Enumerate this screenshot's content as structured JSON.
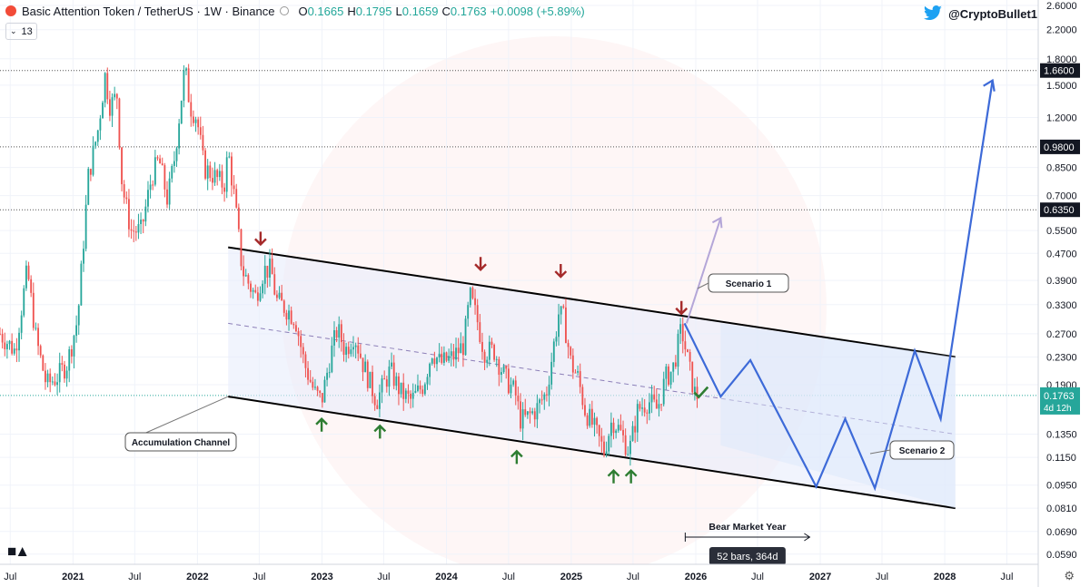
{
  "header": {
    "symbol": "Basic Attention Token / TetherUS · 1W · Binance",
    "o_label": "O",
    "o_value": "0.1665",
    "h_label": "H",
    "h_value": "0.1795",
    "l_label": "L",
    "l_value": "0.1659",
    "c_label": "C",
    "c_value": "0.1763",
    "change": "+0.0098 (+5.89%)"
  },
  "indicator_badge": "13",
  "twitter_handle": "@CryptoBullet1",
  "colors": {
    "up": "#26a69a",
    "down": "#ef5350",
    "channel": "#000000",
    "projection": "#3d6ad8",
    "scenario1": "#b4a6d8",
    "arrow_down": "#a52a2a",
    "arrow_up": "#2e7d32",
    "price_label": "#26a69a"
  },
  "chart_data": {
    "type": "line",
    "title": "",
    "xlabel": "",
    "ylabel": "",
    "y_scale": "log",
    "ylim": [
      0.055,
      2.7
    ],
    "xlim": [
      "2020-06-01",
      "2028-10-01"
    ],
    "x_ticks": [
      {
        "date": "2020-07-01",
        "label": "Jul"
      },
      {
        "date": "2021-01-01",
        "label": "2021"
      },
      {
        "date": "2021-07-01",
        "label": "Jul"
      },
      {
        "date": "2022-01-01",
        "label": "2022"
      },
      {
        "date": "2022-07-01",
        "label": "Jul"
      },
      {
        "date": "2023-01-01",
        "label": "2023"
      },
      {
        "date": "2023-07-01",
        "label": "Jul"
      },
      {
        "date": "2024-01-01",
        "label": "2024"
      },
      {
        "date": "2024-07-01",
        "label": "Jul"
      },
      {
        "date": "2025-01-01",
        "label": "2025"
      },
      {
        "date": "2025-07-01",
        "label": "Jul"
      },
      {
        "date": "2026-01-01",
        "label": "2026"
      },
      {
        "date": "2026-07-01",
        "label": "Jul"
      },
      {
        "date": "2027-01-01",
        "label": "2027"
      },
      {
        "date": "2027-07-01",
        "label": "Jul"
      },
      {
        "date": "2028-01-01",
        "label": "2028"
      },
      {
        "date": "2028-07-01",
        "label": "Jul"
      }
    ],
    "y_ticks": [
      "2.6000",
      "2.2000",
      "1.8000",
      "1.5000",
      "1.2000",
      "0.8500",
      "0.7000",
      "0.5500",
      "0.4700",
      "0.3900",
      "0.3300",
      "0.2700",
      "0.2300",
      "0.1900",
      "0.1350",
      "0.1150",
      "0.0950",
      "0.0810",
      "0.0690",
      "0.0590"
    ],
    "highlighted_levels": [
      {
        "value": 1.66,
        "label": "1.6600"
      },
      {
        "value": 0.98,
        "label": "0.9800"
      },
      {
        "value": 0.635,
        "label": "0.6350"
      }
    ],
    "current_price": {
      "value": 0.1763,
      "label": "0.1763",
      "countdown": "4d 12h"
    },
    "series": [
      {
        "name": "BAT/USDT",
        "points": [
          [
            "2020-06-01",
            0.27
          ],
          [
            "2020-07-15",
            0.24
          ],
          [
            "2020-08-20",
            0.42
          ],
          [
            "2020-09-15",
            0.26
          ],
          [
            "2020-10-15",
            0.19
          ],
          [
            "2020-11-15",
            0.2
          ],
          [
            "2020-12-15",
            0.22
          ],
          [
            "2021-01-15",
            0.3
          ],
          [
            "2021-02-15",
            0.8
          ],
          [
            "2021-03-15",
            1.1
          ],
          [
            "2021-04-05",
            1.6
          ],
          [
            "2021-04-20",
            1.3
          ],
          [
            "2021-05-10",
            1.4
          ],
          [
            "2021-05-25",
            0.75
          ],
          [
            "2021-06-20",
            0.55
          ],
          [
            "2021-07-20",
            0.55
          ],
          [
            "2021-08-20",
            0.8
          ],
          [
            "2021-09-10",
            0.9
          ],
          [
            "2021-10-05",
            0.68
          ],
          [
            "2021-10-25",
            0.9
          ],
          [
            "2021-11-25",
            1.7
          ],
          [
            "2021-12-10",
            1.3
          ],
          [
            "2021-12-30",
            1.2
          ],
          [
            "2022-01-20",
            0.85
          ],
          [
            "2022-02-20",
            0.8
          ],
          [
            "2022-03-20",
            0.75
          ],
          [
            "2022-04-01",
            0.95
          ],
          [
            "2022-04-20",
            0.68
          ],
          [
            "2022-05-12",
            0.42
          ],
          [
            "2022-06-01",
            0.38
          ],
          [
            "2022-06-20",
            0.35
          ],
          [
            "2022-07-15",
            0.42
          ],
          [
            "2022-08-05",
            0.42
          ],
          [
            "2022-08-20",
            0.34
          ],
          [
            "2022-09-20",
            0.32
          ],
          [
            "2022-10-15",
            0.3
          ],
          [
            "2022-11-10",
            0.22
          ],
          [
            "2022-12-10",
            0.18
          ],
          [
            "2022-12-31",
            0.17
          ],
          [
            "2023-01-25",
            0.23
          ],
          [
            "2023-02-15",
            0.28
          ],
          [
            "2023-03-10",
            0.24
          ],
          [
            "2023-04-05",
            0.27
          ],
          [
            "2023-05-01",
            0.22
          ],
          [
            "2023-06-10",
            0.17
          ],
          [
            "2023-07-20",
            0.21
          ],
          [
            "2023-08-20",
            0.18
          ],
          [
            "2023-09-20",
            0.17
          ],
          [
            "2023-10-25",
            0.19
          ],
          [
            "2023-11-20",
            0.24
          ],
          [
            "2023-12-15",
            0.22
          ],
          [
            "2024-01-20",
            0.23
          ],
          [
            "2024-02-20",
            0.25
          ],
          [
            "2024-03-10",
            0.35
          ],
          [
            "2024-03-30",
            0.3
          ],
          [
            "2024-04-20",
            0.24
          ],
          [
            "2024-05-20",
            0.24
          ],
          [
            "2024-06-20",
            0.2
          ],
          [
            "2024-07-20",
            0.18
          ],
          [
            "2024-08-05",
            0.15
          ],
          [
            "2024-08-20",
            0.15
          ],
          [
            "2024-09-20",
            0.16
          ],
          [
            "2024-10-20",
            0.18
          ],
          [
            "2024-11-25",
            0.31
          ],
          [
            "2024-12-10",
            0.3
          ],
          [
            "2024-12-31",
            0.22
          ],
          [
            "2025-01-20",
            0.2
          ],
          [
            "2025-02-10",
            0.16
          ],
          [
            "2025-03-10",
            0.14
          ],
          [
            "2025-04-07",
            0.12
          ],
          [
            "2025-05-01",
            0.15
          ],
          [
            "2025-05-20",
            0.14
          ],
          [
            "2025-06-20",
            0.12
          ],
          [
            "2025-07-15",
            0.16
          ],
          [
            "2025-08-15",
            0.17
          ],
          [
            "2025-09-10",
            0.16
          ],
          [
            "2025-10-05",
            0.2
          ],
          [
            "2025-10-25",
            0.21
          ],
          [
            "2025-11-20",
            0.28
          ],
          [
            "2025-12-10",
            0.22
          ],
          [
            "2025-12-28",
            0.18
          ],
          [
            "2026-01-05",
            0.1763
          ]
        ]
      }
    ],
    "channel": {
      "upper": [
        [
          "2022-04-01",
          0.49
        ],
        [
          "2028-02-01",
          0.23
        ]
      ],
      "mid": [
        [
          "2022-04-01",
          0.29
        ],
        [
          "2028-02-01",
          0.135
        ]
      ],
      "lower": [
        [
          "2022-04-01",
          0.175
        ],
        [
          "2028-02-01",
          0.081
        ]
      ]
    },
    "scenario1_path": [
      [
        "2025-12-05",
        0.29
      ],
      [
        "2026-03-15",
        0.6
      ]
    ],
    "scenario2_path": [
      [
        "2025-11-29",
        0.29
      ],
      [
        "2026-03-15",
        0.175
      ],
      [
        "2026-06-10",
        0.225
      ],
      [
        "2026-12-20",
        0.094
      ],
      [
        "2027-03-15",
        0.15
      ],
      [
        "2027-06-10",
        0.093
      ],
      [
        "2027-10-05",
        0.24
      ],
      [
        "2027-12-20",
        0.15
      ],
      [
        "2028-05-20",
        1.55
      ]
    ],
    "sell_arrows": [
      [
        "2022-07-05",
        0.5
      ],
      [
        "2024-04-10",
        0.42
      ],
      [
        "2024-12-01",
        0.4
      ],
      [
        "2025-11-20",
        0.31
      ]
    ],
    "buy_arrows": [
      [
        "2022-12-31",
        0.15
      ],
      [
        "2023-06-20",
        0.143
      ],
      [
        "2024-07-25",
        0.12
      ],
      [
        "2025-05-05",
        0.105
      ],
      [
        "2025-06-25",
        0.105
      ]
    ],
    "check_mark": [
      "2026-01-15",
      0.18
    ],
    "annotations": {
      "accumulation_channel": "Accumulation Channel",
      "scenario1": "Scenario 1",
      "scenario2": "Scenario 2",
      "bear_market_year": "Bear Market Year",
      "bars_measure": "52 bars, 364d"
    },
    "bear_year_range": [
      "2025-12-01",
      "2026-12-01"
    ]
  }
}
